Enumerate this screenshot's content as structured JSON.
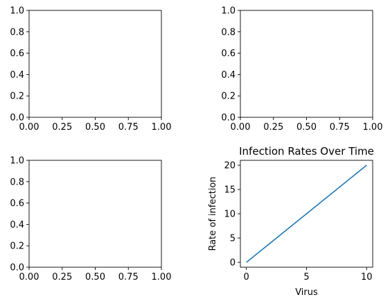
{
  "chart_data": [
    {
      "type": "line",
      "title": "",
      "xlabel": "",
      "ylabel": "",
      "xlim": [
        0,
        1
      ],
      "ylim": [
        0,
        1
      ],
      "xticks": [
        "0.00",
        "0.25",
        "0.50",
        "0.75",
        "1.00"
      ],
      "yticks": [
        "0.0",
        "0.2",
        "0.4",
        "0.6",
        "0.8",
        "1.0"
      ],
      "series": []
    },
    {
      "type": "line",
      "title": "",
      "xlabel": "",
      "ylabel": "",
      "xlim": [
        0,
        1
      ],
      "ylim": [
        0,
        1
      ],
      "xticks": [
        "0.00",
        "0.25",
        "0.50",
        "0.75",
        "1.00"
      ],
      "yticks": [
        "0.0",
        "0.2",
        "0.4",
        "0.6",
        "0.8",
        "1.0"
      ],
      "series": []
    },
    {
      "type": "line",
      "title": "",
      "xlabel": "",
      "ylabel": "",
      "xlim": [
        0,
        1
      ],
      "ylim": [
        0,
        1
      ],
      "xticks": [
        "0.00",
        "0.25",
        "0.50",
        "0.75",
        "1.00"
      ],
      "yticks": [
        "0.0",
        "0.2",
        "0.4",
        "0.6",
        "0.8",
        "1.0"
      ],
      "series": []
    },
    {
      "type": "line",
      "title": "Infection Rates Over Time",
      "xlabel": "Virus",
      "ylabel": "Rate of infection",
      "xlim": [
        -0.5,
        10.5
      ],
      "ylim": [
        -1,
        21
      ],
      "xticks": [
        "0",
        "5",
        "10"
      ],
      "yticks": [
        "0",
        "5",
        "10",
        "15",
        "20"
      ],
      "series": [
        {
          "x": [
            0,
            10
          ],
          "y": [
            0,
            20
          ],
          "color": "#1f77b4"
        }
      ]
    }
  ]
}
